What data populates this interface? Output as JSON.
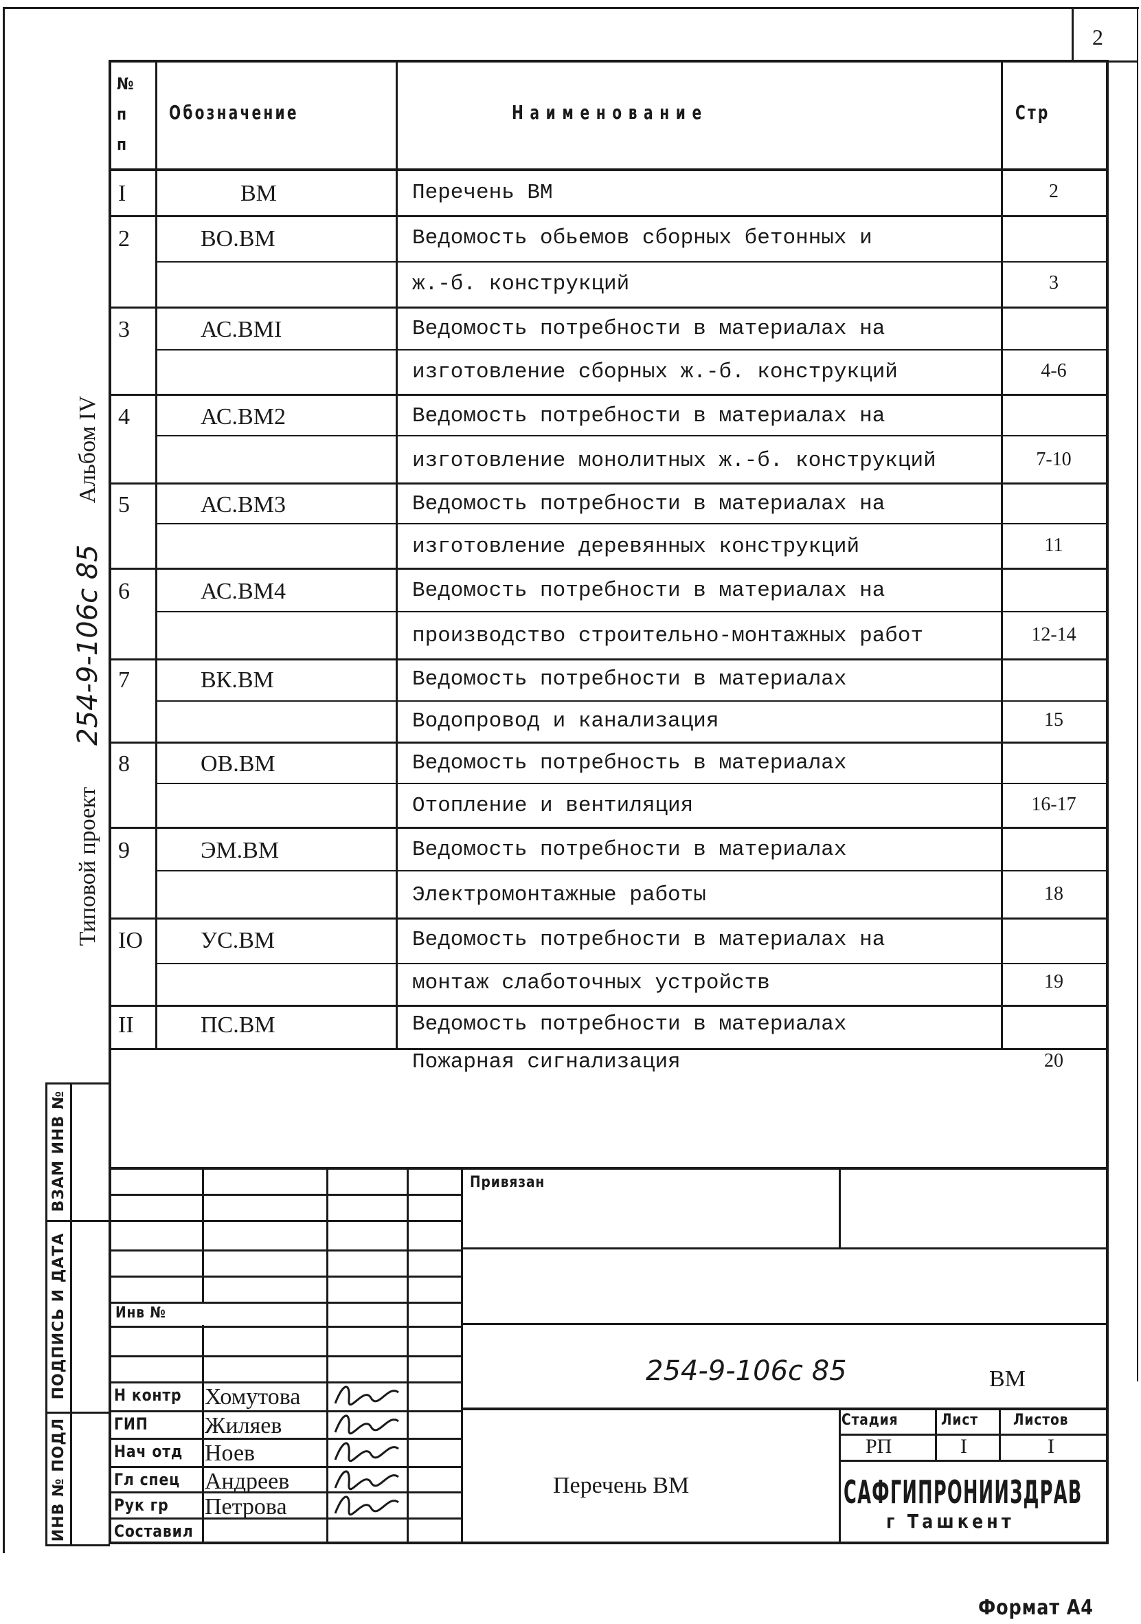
{
  "sheet_number": "2",
  "side_label": {
    "project": "Типовой проект",
    "code": "254-9-106с 85",
    "album": "Альбом IV"
  },
  "table": {
    "headers": {
      "num": "№ п п",
      "designation": "Обозначение",
      "name": "Наименование",
      "page": "Стр"
    },
    "rows": [
      {
        "num": "I",
        "designation": "ВМ",
        "lines": [
          "Перечень ВМ"
        ],
        "page": "2"
      },
      {
        "num": "2",
        "designation": "ВО.ВМ",
        "lines": [
          "Ведомость обьемов сборных бетонных и",
          "ж.-б. конструкций"
        ],
        "page": "3"
      },
      {
        "num": "3",
        "designation": "АС.ВМI",
        "lines": [
          "Ведомость потребности в материалах на",
          "изготовление сборных ж.-б. конструкций"
        ],
        "page": "4-6"
      },
      {
        "num": "4",
        "designation": "АС.ВМ2",
        "lines": [
          "Ведомость потребности в материалах на",
          "изготовление монолитных ж.-б. конструкций"
        ],
        "page": "7-10"
      },
      {
        "num": "5",
        "designation": "АС.ВМ3",
        "lines": [
          "Ведомость потребности в материалах на",
          "изготовление деревянных конструкций"
        ],
        "page": "11"
      },
      {
        "num": "6",
        "designation": "АС.ВМ4",
        "lines": [
          "Ведомость потребности в материалах на",
          "производство строительно-монтажных работ"
        ],
        "page": "12-14"
      },
      {
        "num": "7",
        "designation": "ВК.ВМ",
        "lines": [
          "Ведомость потребности в материалах",
          "Водопровод и канализация"
        ],
        "page": "15"
      },
      {
        "num": "8",
        "designation": "ОВ.ВМ",
        "lines": [
          "Ведомость потребность в материалах",
          "Отопление и вентиляция"
        ],
        "page": "16-17"
      },
      {
        "num": "9",
        "designation": "ЭМ.ВМ",
        "lines": [
          "Ведомость потребности в материалах",
          "Электромонтажные работы"
        ],
        "page": "18"
      },
      {
        "num": "IO",
        "designation": "УС.ВМ",
        "lines": [
          "Ведомость потребности в материалах на",
          "монтаж слаботочных устройств"
        ],
        "page": "19"
      },
      {
        "num": "II",
        "designation": "ПС.ВМ",
        "lines": [
          "Ведомость потребности в материалах",
          "Пожарная сигнализация"
        ],
        "page": "20"
      }
    ]
  },
  "stamp_strip": {
    "replacement_inv": "ВЗАМ ИНВ №",
    "signature_date": "ПОДПИСЬ И ДАТА",
    "original_inv": "ИНВ № ПОДЛ"
  },
  "title_block": {
    "linked": "Привязан",
    "inv_no": "Инв №",
    "document_code": "254-9-106с 85",
    "document_mark": "ВМ",
    "document_title": "Перечень ВМ",
    "stage_label": "Стадия",
    "sheet_label": "Лист",
    "sheets_label": "Листов",
    "stage": "РП",
    "sheet": "I",
    "sheets": "I",
    "organization": "САФГИПРОНИИЗДРАВ",
    "city": "г Ташкент",
    "signatories": [
      {
        "role": "Н контр",
        "name": "Хомутова"
      },
      {
        "role": "ГИП",
        "name": "Жиляев"
      },
      {
        "role": "Нач отд",
        "name": "Ноев"
      },
      {
        "role": "Гл спец",
        "name": "Андреев"
      },
      {
        "role": "Рук гр",
        "name": "Петрова"
      },
      {
        "role": "Составил",
        "name": ""
      }
    ]
  },
  "format": "Формат А4"
}
